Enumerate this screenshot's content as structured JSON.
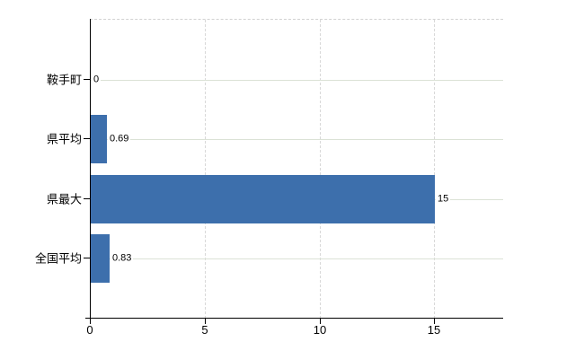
{
  "chart_data": {
    "type": "bar",
    "orientation": "horizontal",
    "title": "",
    "xlabel": "",
    "ylabel": "",
    "categories": [
      "鞍手町",
      "県平均",
      "県最大",
      "全国平均"
    ],
    "values": [
      0,
      0.69,
      15,
      0.83
    ],
    "value_labels": [
      "0",
      "0.69",
      "15",
      "0.83"
    ],
    "xticks": [
      0,
      5,
      10,
      15
    ],
    "xtick_labels": [
      "0",
      "5",
      "10",
      "15"
    ],
    "xlim": [
      0,
      18
    ],
    "grid": true,
    "legend": false,
    "colors": {
      "bar": "#3d6fac",
      "axis": "#000000",
      "h_gridline": "#dbe2d6",
      "v_gridline": "#d8d8d8",
      "text": "#000000",
      "background": "#ffffff"
    }
  }
}
